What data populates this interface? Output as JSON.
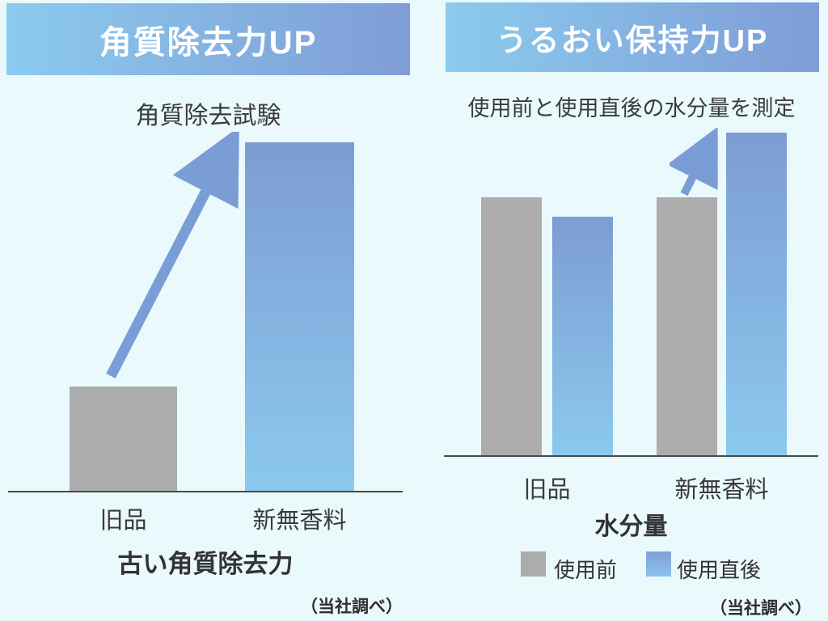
{
  "colors": {
    "background": "#EAFAFC",
    "banner_gradient_start": "#8BCBEE",
    "banner_gradient_end": "#7F9CD6",
    "banner_text": "#FFFFFF",
    "bar_gray": "#ACACAC",
    "bar_blue_gradient_top": "#7E9CD2",
    "bar_blue_gradient_bottom": "#8BC9EE",
    "arrow": "#7B9DD6",
    "baseline": "#4A4A4A",
    "text": "#3A3A3A"
  },
  "chart_data": [
    {
      "type": "bar",
      "panel": "left",
      "header": "角質除去力UP",
      "title": "角質除去試験",
      "categories": [
        "旧品",
        "新無香料"
      ],
      "values": [
        30,
        100
      ],
      "value_units": "relative (tallest bar = 100), no numeric axis shown",
      "bar_styles": [
        "gray",
        "blue-gradient"
      ],
      "xlabel": "古い角質除去力",
      "source_note": "（当社調べ）",
      "annotation": "up-right arrow from 旧品 bar toward 新無香料 bar",
      "grid": false,
      "legend": false
    },
    {
      "type": "bar",
      "panel": "right",
      "header": "うるおい保持力UP",
      "title": "使用前と使用直後の水分量を測定",
      "categories": [
        "旧品",
        "新無香料"
      ],
      "series": [
        {
          "name": "使用前",
          "style": "gray",
          "values": [
            80,
            80
          ]
        },
        {
          "name": "使用直後",
          "style": "blue-gradient",
          "values": [
            74,
            100
          ]
        }
      ],
      "value_units": "relative (tallest bar = 100), no numeric axis shown",
      "xlabel": "水分量",
      "source_note": "（当社調べ）",
      "annotation": "up-right arrow from 新無香料 使用前 bar toward 使用直後 bar",
      "grid": false,
      "legend_position": "bottom"
    }
  ]
}
